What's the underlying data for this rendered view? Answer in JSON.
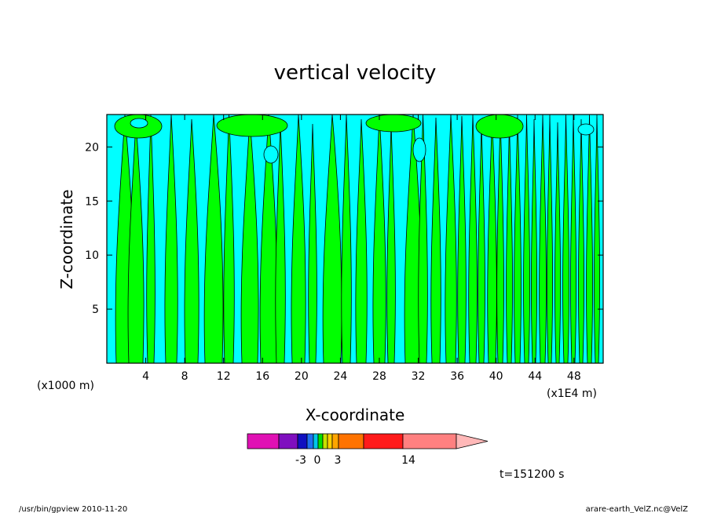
{
  "chart_data": {
    "type": "heatmap",
    "title": "vertical velocity",
    "xlabel": "X-coordinate",
    "ylabel": "Z-coordinate",
    "x_unit_left": "(x1000 m)",
    "x_unit_right": "(x1E4 m)",
    "xlim": [
      0,
      51
    ],
    "ylim": [
      0,
      23
    ],
    "xticks": [
      4,
      8,
      12,
      16,
      20,
      24,
      28,
      32,
      36,
      40,
      44,
      48
    ],
    "yticks": [
      5,
      10,
      15,
      20
    ],
    "colorbar": {
      "tick_labels": [
        "-3",
        "0",
        "3",
        "14"
      ],
      "colors": [
        "#e011b4",
        "#7f0fbf",
        "#1010c0",
        "#1f6ff0",
        "#00c6e8",
        "#00e000",
        "#c9e000",
        "#ffd000",
        "#ffa600",
        "#ff7300",
        "#ff1b1b",
        "#ff8080",
        "#ffb8b8"
      ]
    },
    "fill_colors": {
      "negative": "#00ffff",
      "positive": "#00ff00"
    },
    "annotation": "t=151200 s"
  },
  "footer": {
    "left": "/usr/bin/gpview   2010-11-20",
    "right": "arare-earth_VelZ.nc@VelZ"
  }
}
